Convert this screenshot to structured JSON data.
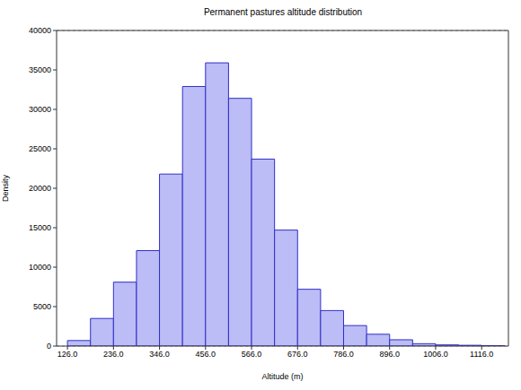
{
  "chart_data": {
    "type": "histogram",
    "title": "Permanent pastures altitude distribution",
    "x_label": "Altitude (m)",
    "y_label": "Density",
    "bins": [
      126,
      181,
      236,
      291,
      346,
      401,
      456,
      511,
      566,
      621,
      676,
      731,
      786,
      841,
      896,
      951,
      1006,
      1061,
      1116,
      1171
    ],
    "values": [
      700,
      3500,
      8100,
      12100,
      21800,
      32900,
      35900,
      31400,
      23700,
      14700,
      7200,
      4500,
      2600,
      1500,
      800,
      300,
      150,
      100,
      50
    ],
    "color": "#bcbcf6",
    "xlim": [
      100,
      1180
    ],
    "ylim": [
      0,
      40000
    ],
    "xticks": [
      {
        "value": 126,
        "label": "126.0"
      },
      {
        "value": 236,
        "label": "236.0"
      },
      {
        "value": 346,
        "label": "346.0"
      },
      {
        "value": 456,
        "label": "456.0"
      },
      {
        "value": 566,
        "label": "566.0"
      },
      {
        "value": 676,
        "label": "676.0"
      },
      {
        "value": 786,
        "label": "786.0"
      },
      {
        "value": 896,
        "label": "896.0"
      },
      {
        "value": 1006,
        "label": "1006.0"
      },
      {
        "value": 1116,
        "label": "1116.0"
      }
    ],
    "yticks": [
      0,
      5000,
      10000,
      15000,
      20000,
      25000,
      30000,
      35000,
      40000
    ],
    "grid": true
  }
}
